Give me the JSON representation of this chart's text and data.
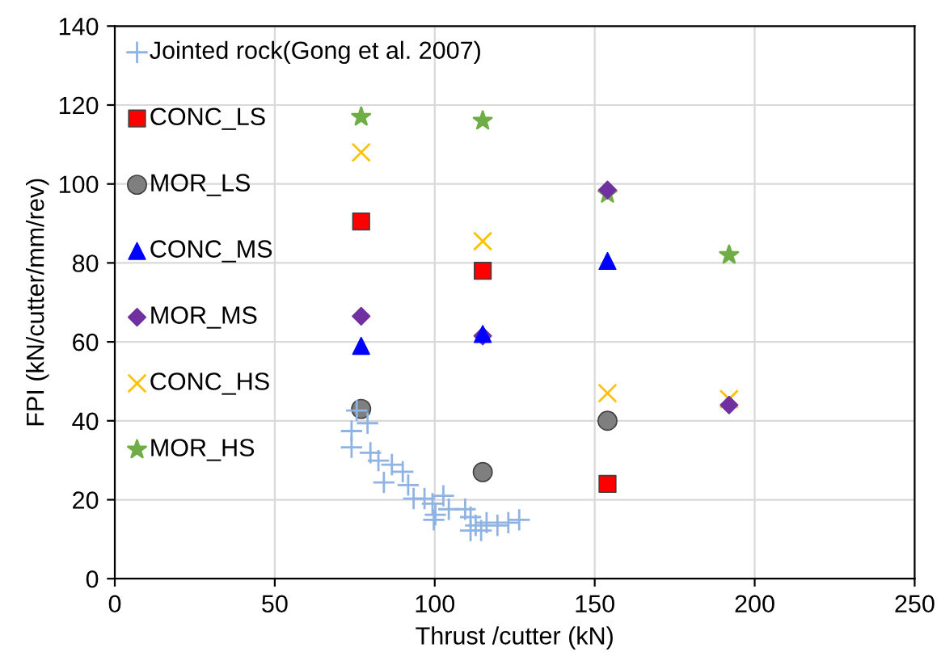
{
  "chart_data": {
    "type": "scatter",
    "xlabel": "Thrust /cutter (kN)",
    "ylabel": "FPI (kN/cutter/mm/rev)",
    "xlim": [
      0,
      250
    ],
    "ylim": [
      0,
      140
    ],
    "xticks": [
      0,
      50,
      100,
      150,
      200,
      250
    ],
    "yticks": [
      0,
      20,
      40,
      60,
      80,
      100,
      120,
      140
    ],
    "grid": true,
    "legend": "top left",
    "series": [
      {
        "name": "Jointed rock(Gong et al. 2007)",
        "color": "#8fb4e3",
        "marker": "plus",
        "x": [
          75.6,
          79,
          74,
          74,
          79.9,
          82.4,
          86.6,
          90,
          84.1,
          91.7,
          93.4,
          96.8,
          99.3,
          102.7,
          100.2,
          99.7,
          104.4,
          109.5,
          111.2,
          112.8,
          111.2,
          116.2,
          119.6,
          123,
          126.4,
          114.5
        ],
        "values": [
          42.6,
          39.4,
          37.4,
          33.3,
          31.9,
          29.9,
          28.9,
          27.1,
          24.4,
          23.7,
          20.3,
          20.3,
          19,
          21,
          16.2,
          14.9,
          17.6,
          17.6,
          15.6,
          13.5,
          12.2,
          14.2,
          13.5,
          14.2,
          14.9,
          12.2
        ]
      },
      {
        "name": "CONC_LS",
        "color": "#ff0000",
        "marker": "square",
        "x": [
          77,
          115,
          154
        ],
        "values": [
          90.5,
          78,
          24
        ]
      },
      {
        "name": "MOR_LS",
        "color": "#7f7f7f",
        "marker": "circle",
        "x": [
          77,
          115,
          154
        ],
        "values": [
          43,
          27,
          40
        ]
      },
      {
        "name": "CONC_MS",
        "color": "#0000ff",
        "marker": "triangle",
        "x": [
          77,
          115,
          154
        ],
        "values": [
          59,
          62,
          80.5
        ]
      },
      {
        "name": "MOR_MS",
        "color": "#7030a0",
        "marker": "diamond",
        "x": [
          77,
          115,
          154,
          192
        ],
        "values": [
          66.5,
          61.5,
          98.5,
          44
        ]
      },
      {
        "name": "CONC_HS",
        "color": "#ffc000",
        "marker": "cross",
        "x": [
          77,
          115,
          154,
          192
        ],
        "values": [
          108,
          85.5,
          47,
          45.5
        ]
      },
      {
        "name": "MOR_HS",
        "color": "#70ad47",
        "marker": "star",
        "x": [
          77,
          115,
          154,
          192
        ],
        "values": [
          117,
          116,
          97.5,
          82
        ]
      }
    ]
  }
}
